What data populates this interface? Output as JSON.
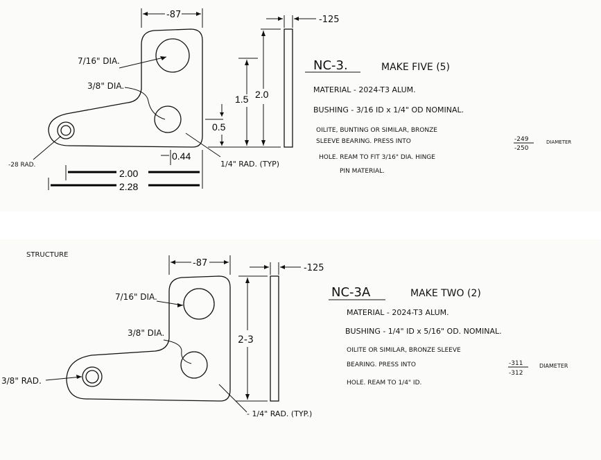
{
  "top": {
    "dim_width_top": "-87",
    "dim_thickness": "-125",
    "hole_large": "7/16\" DIA.",
    "hole_small": "3/8\" DIA.",
    "pivot_radius": "-28 RAD.",
    "corner_radius": "1/4\" RAD. (TYP)",
    "dim_15": "1.5",
    "dim_20": "2.0",
    "dim_05": "0.5",
    "dim_044": "0.44",
    "dim_200": "2.00",
    "dim_228": "2.28",
    "part_no": "NC-3.",
    "make": "MAKE FIVE (5)",
    "material": "MATERIAL - 2024-T3 ALUM.",
    "bushing": "BUSHING - 3/16 ID x 1/4\" OD NOMINAL.",
    "note_1": "OILITE, BUNTING OR SIMILAR, BRONZE",
    "note_2": "SLEEVE BEARING. PRESS INTO",
    "frac_num": "-249",
    "frac_den": "-250",
    "note_diameter": "DIAMETER",
    "note_3": "HOLE. REAM TO FIT 3/16\" DIA. HINGE",
    "note_4": "PIN MATERIAL."
  },
  "bottom": {
    "header_fragment": "STRUCTURE",
    "dim_width_top": "-87",
    "dim_thickness": "-125",
    "hole_large": "7/16\" DIA.",
    "hole_small": "3/8\" DIA.",
    "pivot_radius": "3/8\" RAD.",
    "corner_radius": "- 1/4\" RAD. (TYP.)",
    "dim_height": "2-3",
    "part_no": "NC-3A",
    "make": "MAKE TWO (2)",
    "material": "MATERIAL - 2024-T3 ALUM.",
    "bushing": "BUSHING - 1/4\" ID x 5/16\" OD. NOMINAL.",
    "note_1": "OILITE OR SIMILAR, BRONZE SLEEVE",
    "note_2": "BEARING. PRESS INTO",
    "frac_num": "-311",
    "frac_den": "-312",
    "note_diameter": "DIAMETER",
    "note_3": "HOLE. REAM TO 1/4\" ID."
  }
}
